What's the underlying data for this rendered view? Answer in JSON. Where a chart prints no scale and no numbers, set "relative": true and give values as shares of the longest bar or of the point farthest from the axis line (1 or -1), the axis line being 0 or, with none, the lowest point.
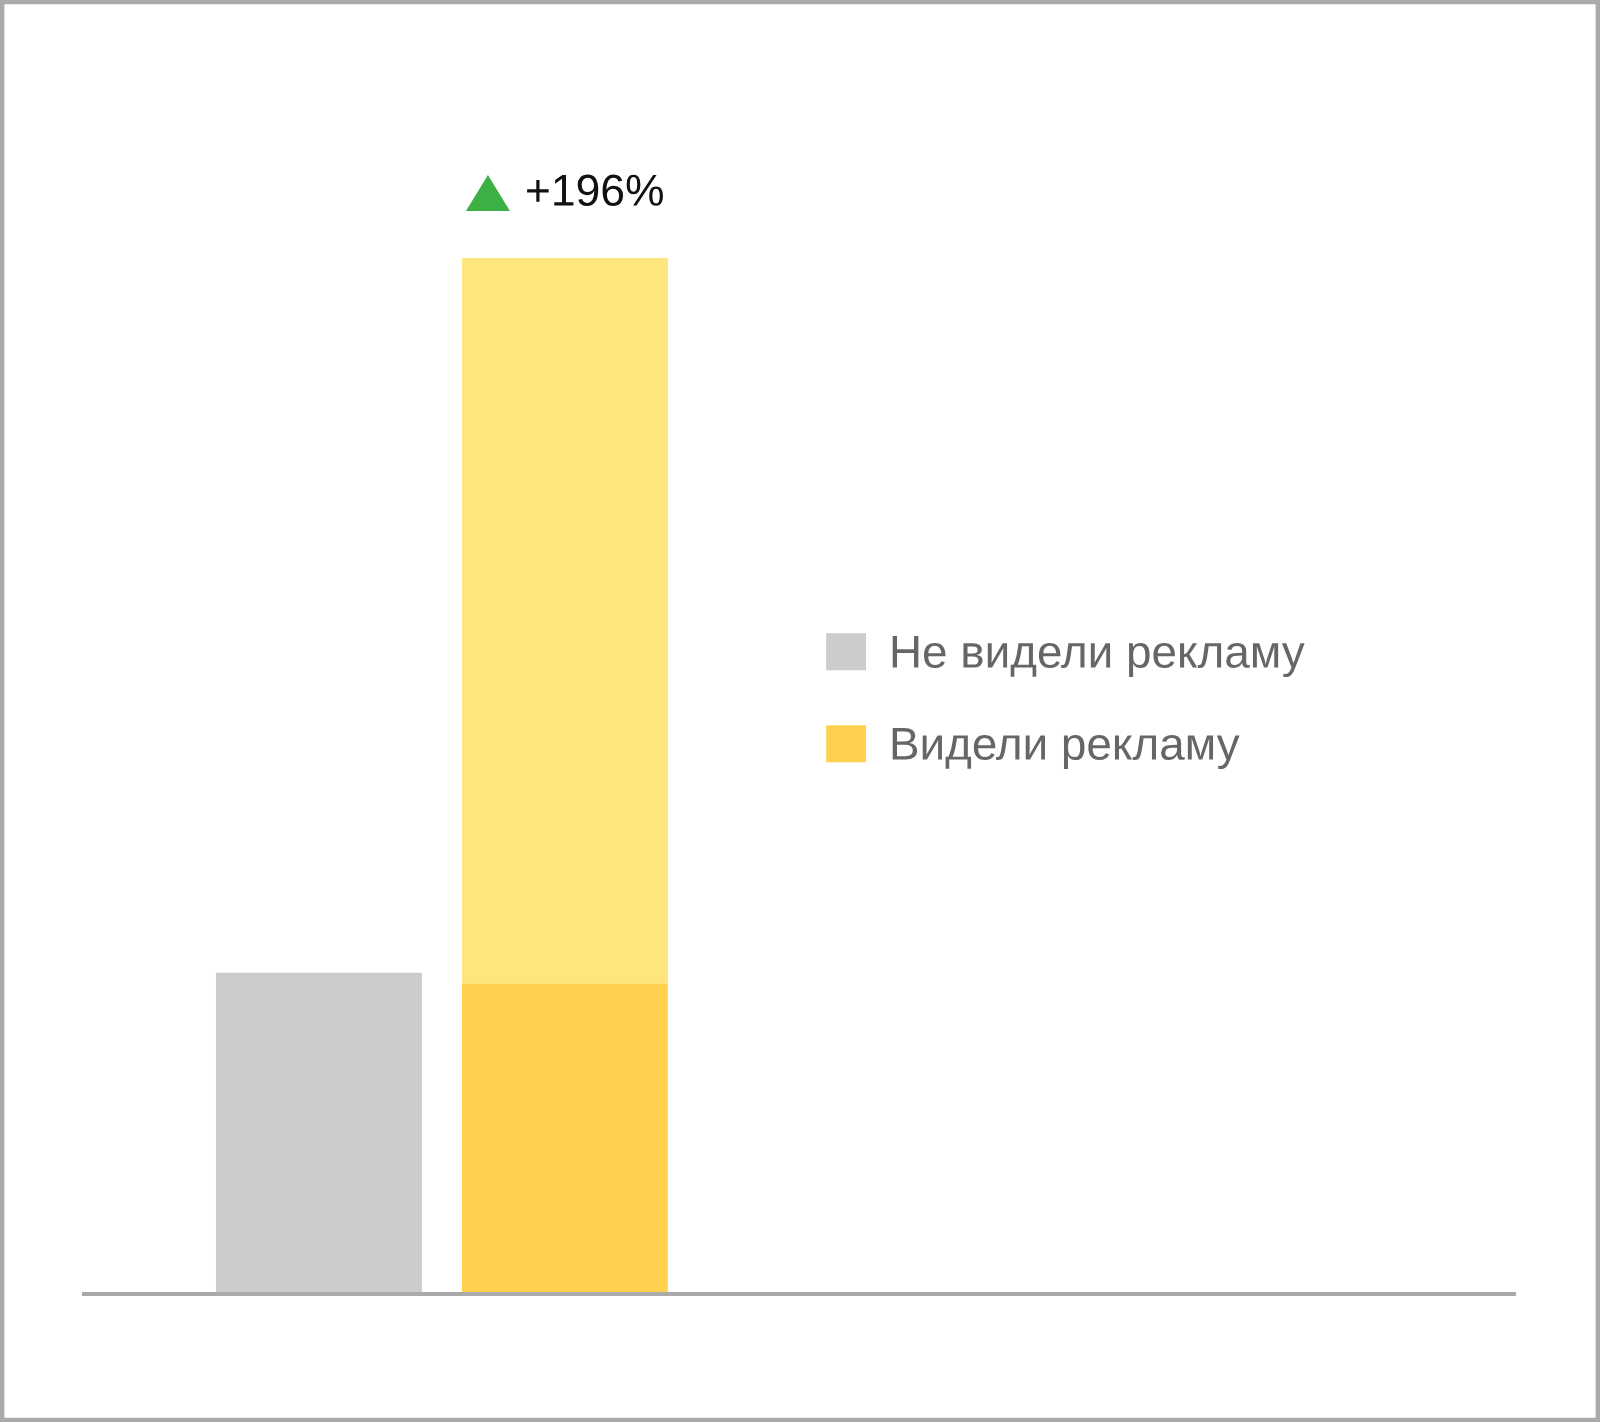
{
  "chart_data": {
    "type": "bar",
    "relative": true,
    "stacked": true,
    "categories": [
      null,
      null
    ],
    "series": [
      {
        "name": "Не видели рекламу",
        "color": "#cccccc",
        "values": [
          0.31,
          null
        ]
      },
      {
        "name": "Видели рекламу",
        "color": "#fed24f",
        "values": [
          null,
          0.3
        ]
      },
      {
        "color": "#fee67a",
        "values": [
          null,
          0.7
        ]
      }
    ],
    "annotations": [
      "+196%"
    ],
    "legend": "right"
  }
}
